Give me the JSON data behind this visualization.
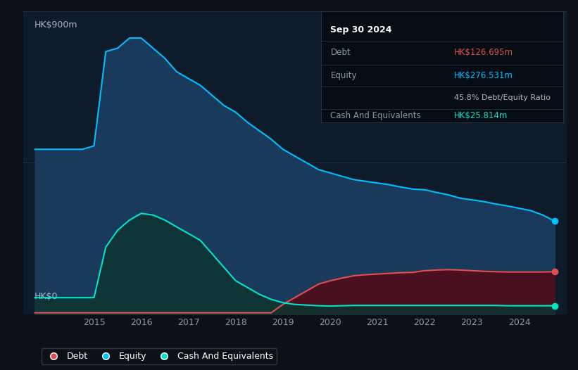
{
  "bg_color": "#0d1117",
  "plot_bg_color": "#0d1b2a",
  "title_y_label": "HK$900m",
  "zero_label": "HK$0",
  "x_ticks": [
    2015,
    2016,
    2017,
    2018,
    2019,
    2020,
    2021,
    2022,
    2023,
    2024
  ],
  "ylim": [
    0,
    900
  ],
  "equity_color": "#00bfff",
  "equity_fill": "#1a3a5c",
  "debt_color": "#e05050",
  "debt_fill": "#4a1020",
  "cash_color": "#00e5cc",
  "cash_fill": "#0d3330",
  "grid_color": "#1e3050",
  "tooltip_title": "Sep 30 2024",
  "tooltip_debt_label": "Debt",
  "tooltip_debt_value": "HK$126.695m",
  "tooltip_equity_label": "Equity",
  "tooltip_equity_value": "HK$276.531m",
  "tooltip_ratio": "45.8% Debt/Equity Ratio",
  "tooltip_cash_label": "Cash And Equivalents",
  "tooltip_cash_value": "HK$25.814m",
  "years": [
    2013.75,
    2014.0,
    2014.25,
    2014.5,
    2014.75,
    2015.0,
    2015.25,
    2015.5,
    2015.75,
    2016.0,
    2016.25,
    2016.5,
    2016.75,
    2017.0,
    2017.25,
    2017.5,
    2017.75,
    2018.0,
    2018.25,
    2018.5,
    2018.75,
    2019.0,
    2019.25,
    2019.5,
    2019.75,
    2020.0,
    2020.25,
    2020.5,
    2020.75,
    2021.0,
    2021.25,
    2021.5,
    2021.75,
    2022.0,
    2022.25,
    2022.5,
    2022.75,
    2023.0,
    2023.25,
    2023.5,
    2023.75,
    2024.0,
    2024.25,
    2024.5,
    2024.75
  ],
  "equity": [
    490,
    490,
    490,
    490,
    490,
    500,
    780,
    790,
    820,
    820,
    790,
    760,
    720,
    700,
    680,
    650,
    620,
    600,
    570,
    545,
    520,
    490,
    470,
    450,
    430,
    420,
    410,
    400,
    395,
    390,
    385,
    378,
    372,
    370,
    362,
    355,
    345,
    340,
    335,
    328,
    322,
    315,
    308,
    295,
    277
  ],
  "debt": [
    5,
    5,
    5,
    5,
    5,
    5,
    5,
    5,
    5,
    5,
    5,
    5,
    5,
    5,
    5,
    5,
    5,
    5,
    5,
    5,
    5,
    30,
    50,
    70,
    90,
    100,
    108,
    115,
    118,
    120,
    122,
    124,
    125,
    130,
    132,
    133,
    132,
    130,
    128,
    127,
    126,
    126,
    126,
    126,
    127
  ],
  "cash": [
    50,
    50,
    50,
    50,
    50,
    50,
    200,
    250,
    280,
    300,
    295,
    280,
    260,
    240,
    220,
    180,
    140,
    100,
    80,
    60,
    45,
    35,
    30,
    28,
    26,
    25,
    26,
    27,
    27,
    27,
    27,
    27,
    27,
    27,
    27,
    27,
    27,
    27,
    27,
    27,
    26,
    26,
    26,
    26,
    26
  ]
}
